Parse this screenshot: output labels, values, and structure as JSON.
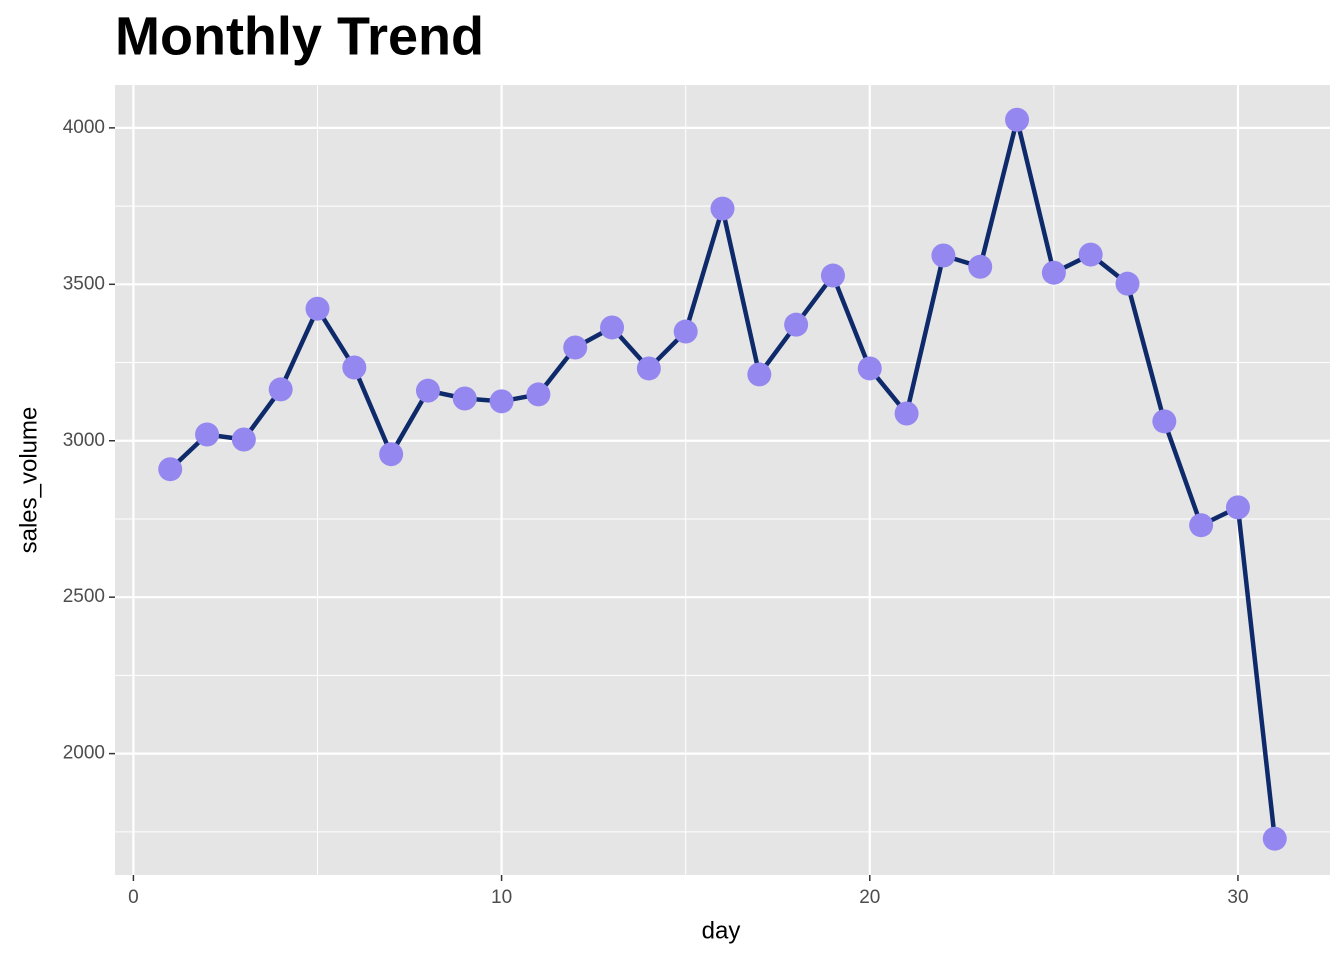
{
  "chart_data": {
    "type": "line",
    "title": "Monthly Trend",
    "x_label": "day",
    "y_label": "sales_volume",
    "x": [
      1,
      2,
      3,
      4,
      5,
      6,
      7,
      8,
      9,
      10,
      11,
      12,
      13,
      14,
      15,
      16,
      17,
      18,
      19,
      20,
      21,
      22,
      23,
      24,
      25,
      26,
      27,
      28,
      29,
      30,
      31
    ],
    "series": [
      {
        "name": "sales_volume",
        "color": "#0f2a6b",
        "point_color": "#9488f0",
        "values": [
          2909,
          3020,
          3004,
          3164,
          3422,
          3234,
          2957,
          3160,
          3135,
          3126,
          3148,
          3298,
          3362,
          3231,
          3349,
          3742,
          3212,
          3371,
          3528,
          3231,
          3087,
          3592,
          3556,
          4026,
          3537,
          3595,
          3502,
          3062,
          2730,
          2787,
          1728
        ]
      }
    ],
    "xlim": [
      -0.5,
      32.5
    ],
    "xticks": [
      0,
      10,
      20,
      30
    ],
    "minor_xticks": [
      5,
      15,
      25
    ],
    "ylim": [
      1612,
      4137
    ],
    "yticks": [
      2000,
      2500,
      3000,
      3500,
      4000
    ],
    "minor_yticks": [
      1750,
      2250,
      2750,
      3250,
      3750
    ],
    "grid": true
  }
}
